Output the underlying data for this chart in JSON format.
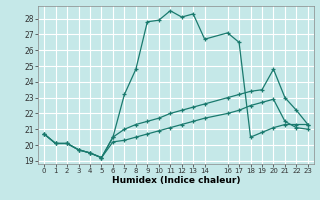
{
  "title": "",
  "xlabel": "Humidex (Indice chaleur)",
  "bg_color": "#c5e8e8",
  "grid_color": "#ffffff",
  "line_color": "#1a7a6e",
  "xlim": [
    -0.5,
    23.5
  ],
  "ylim": [
    18.8,
    28.8
  ],
  "xticks": [
    0,
    1,
    2,
    3,
    4,
    5,
    6,
    7,
    8,
    9,
    10,
    11,
    12,
    13,
    14,
    16,
    17,
    18,
    19,
    20,
    21,
    22,
    23
  ],
  "yticks": [
    19,
    20,
    21,
    22,
    23,
    24,
    25,
    26,
    27,
    28
  ],
  "series": [
    {
      "x": [
        0,
        1,
        2,
        3,
        4,
        5,
        6,
        7,
        8,
        9,
        10,
        11,
        12,
        13,
        14,
        16,
        17,
        18,
        19,
        20,
        21,
        22,
        23
      ],
      "y": [
        20.7,
        20.1,
        20.1,
        19.7,
        19.5,
        19.2,
        20.5,
        23.2,
        24.8,
        27.8,
        27.9,
        28.5,
        28.1,
        28.3,
        26.7,
        27.1,
        26.5,
        20.5,
        20.8,
        21.1,
        21.3,
        21.3,
        21.3
      ]
    },
    {
      "x": [
        0,
        1,
        2,
        3,
        4,
        5,
        6,
        7,
        8,
        9,
        10,
        11,
        12,
        13,
        14,
        16,
        17,
        18,
        19,
        20,
        21,
        22,
        23
      ],
      "y": [
        20.7,
        20.1,
        20.1,
        19.7,
        19.5,
        19.2,
        20.5,
        21.0,
        21.3,
        21.5,
        21.7,
        22.0,
        22.2,
        22.4,
        22.6,
        23.0,
        23.2,
        23.4,
        23.5,
        24.8,
        23.0,
        22.2,
        21.3
      ]
    },
    {
      "x": [
        0,
        1,
        2,
        3,
        4,
        5,
        6,
        7,
        8,
        9,
        10,
        11,
        12,
        13,
        14,
        16,
        17,
        18,
        19,
        20,
        21,
        22,
        23
      ],
      "y": [
        20.7,
        20.1,
        20.1,
        19.7,
        19.5,
        19.2,
        20.2,
        20.3,
        20.5,
        20.7,
        20.9,
        21.1,
        21.3,
        21.5,
        21.7,
        22.0,
        22.2,
        22.5,
        22.7,
        22.9,
        21.5,
        21.1,
        21.0
      ]
    }
  ]
}
